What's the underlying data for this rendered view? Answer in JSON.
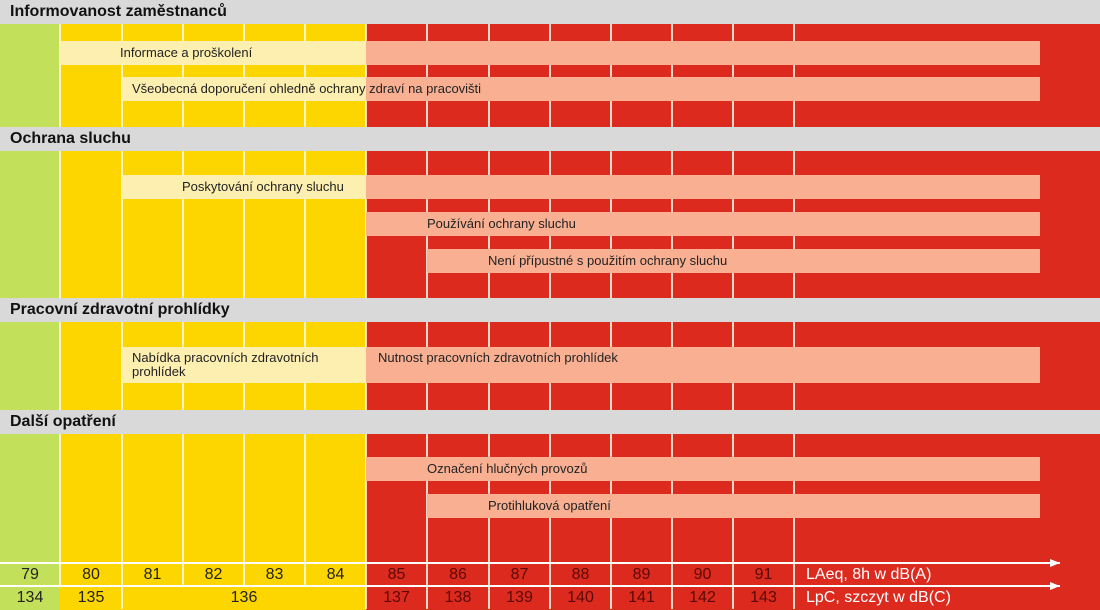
{
  "colors": {
    "green": "#c3e05a",
    "yellow": "#fdd600",
    "red": "#dc2a1e",
    "pale_yellow": "#fdefb0",
    "salmon": "#f9b092",
    "header_gray": "#d9d9d9"
  },
  "sections": [
    {
      "title": "Informovanost zaměstnanců"
    },
    {
      "title": "Ochrana sluchu"
    },
    {
      "title": "Pracovní zdravotní prohlídky"
    },
    {
      "title": "Další opatření"
    }
  ],
  "bars": [
    {
      "label": "Informace a proškolení"
    },
    {
      "label": "Všeobecná doporučení ohledně ochrany zdraví na pracovišti"
    },
    {
      "label": "Poskytování ochrany sluchu"
    },
    {
      "label": "Používání ochrany sluchu"
    },
    {
      "label": "Není přípustné s použitím ochrany sluchu"
    },
    {
      "label": "Nabídka pracovních zdravotních prohlídek"
    },
    {
      "label": "Nutnost pracovních zdravotních prohlídek"
    },
    {
      "label": "Označení hlučných provozů"
    },
    {
      "label": "Protihluková opatření"
    }
  ],
  "scale_laeq": {
    "values": [
      "79",
      "80",
      "81",
      "82",
      "83",
      "84",
      "85",
      "86",
      "87",
      "88",
      "89",
      "90",
      "91"
    ],
    "label": "LAeq, 8h w dB(A)"
  },
  "scale_lpc": {
    "values": [
      "134",
      "135",
      "136",
      "137",
      "138",
      "139",
      "140",
      "141",
      "142",
      "143"
    ],
    "label": "LpC, szczyt w dB(C)"
  }
}
